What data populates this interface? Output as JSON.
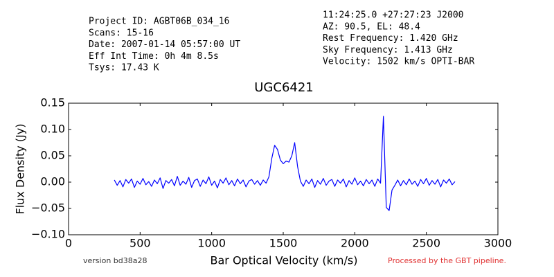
{
  "chart_data": {
    "type": "line",
    "title": "UGC6421",
    "xlabel": "Bar Optical Velocity (km/s)",
    "ylabel": "Flux Density (Jy)",
    "header_left": [
      "Project ID: AGBT06B_034_16",
      "Scans: 15-16",
      "Date: 2007-01-14 05:57:00 UT",
      "Eff Int Time: 0h 4m 8.5s",
      "Tsys: 17.43 K"
    ],
    "header_right": [
      "11:24:25.0 +27:27:23 J2000",
      "AZ: 90.5, EL: 48.4",
      "Rest Frequency:   1.420 GHz",
      "Sky Frequency:    1.413 GHz",
      "Velocity: 1502 km/s OPTI-BAR"
    ],
    "footer_left": "version bd38a28",
    "footer_right": "Processed by the GBT pipeline.",
    "color": "#0000ff",
    "xlim": [
      0,
      3000
    ],
    "ylim": [
      -0.1,
      0.15
    ],
    "xticks": [
      0,
      500,
      1000,
      1500,
      2000,
      2500,
      3000
    ],
    "yticks": [
      {
        "value": -0.1,
        "label": "−0.10"
      },
      {
        "value": -0.05,
        "label": "−0.05"
      },
      {
        "value": 0,
        "label": "0.00"
      },
      {
        "value": 0.05,
        "label": "0.05"
      },
      {
        "value": 0.1,
        "label": "0.10"
      },
      {
        "value": 0.15,
        "label": "0.15"
      }
    ],
    "x": [
      320,
      340,
      360,
      380,
      400,
      420,
      440,
      460,
      480,
      500,
      520,
      540,
      560,
      580,
      600,
      620,
      640,
      660,
      680,
      700,
      720,
      740,
      760,
      780,
      800,
      820,
      840,
      860,
      880,
      900,
      920,
      940,
      960,
      980,
      1000,
      1020,
      1040,
      1060,
      1080,
      1100,
      1120,
      1140,
      1160,
      1180,
      1200,
      1220,
      1240,
      1260,
      1280,
      1300,
      1320,
      1340,
      1360,
      1380,
      1400,
      1420,
      1440,
      1460,
      1480,
      1500,
      1520,
      1540,
      1560,
      1580,
      1600,
      1620,
      1640,
      1660,
      1680,
      1700,
      1720,
      1740,
      1760,
      1780,
      1800,
      1820,
      1840,
      1860,
      1880,
      1900,
      1920,
      1940,
      1960,
      1980,
      2000,
      2020,
      2040,
      2060,
      2080,
      2100,
      2120,
      2140,
      2160,
      2180,
      2200,
      2220,
      2240,
      2260,
      2280,
      2300,
      2320,
      2340,
      2360,
      2380,
      2400,
      2420,
      2440,
      2460,
      2480,
      2500,
      2520,
      2540,
      2560,
      2580,
      2600,
      2620,
      2640,
      2660,
      2680,
      2700
    ],
    "values": [
      0.004,
      -0.006,
      0.003,
      -0.009,
      0.005,
      -0.002,
      0.006,
      -0.01,
      0.002,
      -0.004,
      0.007,
      -0.005,
      0.001,
      -0.008,
      0.004,
      -0.003,
      0.008,
      -0.012,
      0.003,
      -0.002,
      0.005,
      -0.007,
      0.011,
      -0.006,
      0.002,
      -0.004,
      0.009,
      -0.01,
      0.003,
      0.006,
      -0.008,
      0.004,
      -0.003,
      0.01,
      -0.006,
      0.002,
      -0.011,
      0.005,
      -0.002,
      0.008,
      -0.005,
      0.003,
      -0.007,
      0.006,
      -0.003,
      0.004,
      -0.009,
      0.002,
      0.005,
      -0.004,
      0.003,
      -0.006,
      0.004,
      -0.002,
      0.01,
      0.045,
      0.07,
      0.062,
      0.042,
      0.035,
      0.04,
      0.038,
      0.05,
      0.075,
      0.03,
      0.002,
      -0.008,
      0.004,
      -0.003,
      0.006,
      -0.01,
      0.003,
      -0.004,
      0.007,
      -0.006,
      0.002,
      0.005,
      -0.008,
      0.004,
      -0.002,
      0.006,
      -0.009,
      0.003,
      -0.004,
      0.008,
      -0.005,
      0.002,
      -0.007,
      0.005,
      -0.003,
      0.004,
      -0.008,
      0.006,
      -0.002,
      0.125,
      -0.048,
      -0.054,
      -0.015,
      -0.006,
      0.004,
      -0.007,
      0.003,
      -0.005,
      0.006,
      -0.004,
      0.002,
      -0.008,
      0.005,
      -0.003,
      0.007,
      -0.006,
      0.003,
      -0.004,
      0.005,
      -0.009,
      0.004,
      -0.002,
      0.006,
      -0.005,
      0.001
    ]
  }
}
